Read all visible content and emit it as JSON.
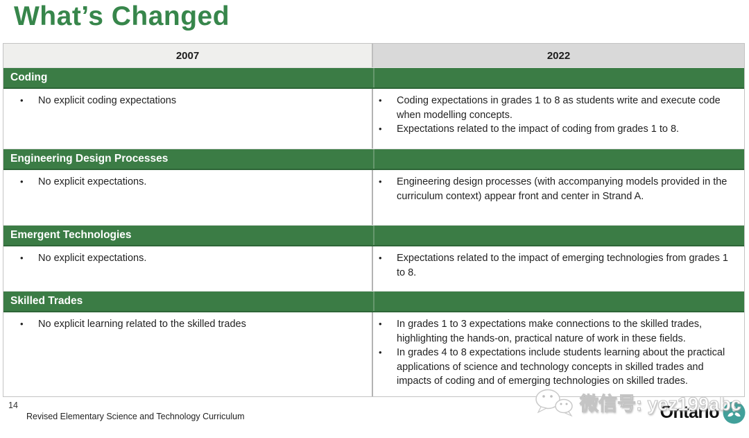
{
  "slide": {
    "title": "What’s Changed",
    "page_number": "14",
    "footer_text": "Revised Elementary Science and Technology Curriculum"
  },
  "table": {
    "columns": [
      "2007",
      "2022"
    ],
    "sections": [
      {
        "heading": "Coding",
        "col2007": [
          "No explicit coding expectations"
        ],
        "col2022": [
          "Coding expectations in grades 1 to 8 as students write and execute code when modelling concepts.",
          "Expectations related to the impact of coding from grades 1 to 8."
        ]
      },
      {
        "heading": "Engineering Design Processes",
        "col2007": [
          "No explicit expectations."
        ],
        "col2022": [
          "Engineering design processes (with accompanying models provided in the curriculum context) appear front and center in Strand A."
        ]
      },
      {
        "heading": "Emergent Technologies",
        "col2007": [
          "No explicit expectations."
        ],
        "col2022": [
          "Expectations related to the impact of emerging technologies from grades 1 to 8."
        ]
      },
      {
        "heading": "Skilled Trades",
        "col2007": [
          "No explicit learning related to the skilled trades"
        ],
        "col2022": [
          "In grades 1 to 3 expectations make connections to the skilled trades, highlighting the hands-on, practical nature of work in these fields.",
          "In grades 4 to 8 expectations include students learning about the practical applications of science and technology concepts in skilled trades and impacts of coding and of emerging technologies on skilled trades."
        ]
      }
    ]
  },
  "watermark": {
    "text": "微信号: yez199abc",
    "icon": "wechat-icon"
  },
  "logo": {
    "wordmark": "Ontario",
    "icon": "ontario-trillium-icon"
  },
  "bullet_glyph": "•",
  "colors": {
    "title_green": "#37864b",
    "section_bar_green": "#3b7c45",
    "header_2007_bg": "#efefed",
    "header_2022_bg": "#d9d9d9",
    "trillium_teal": "#41a09a"
  }
}
